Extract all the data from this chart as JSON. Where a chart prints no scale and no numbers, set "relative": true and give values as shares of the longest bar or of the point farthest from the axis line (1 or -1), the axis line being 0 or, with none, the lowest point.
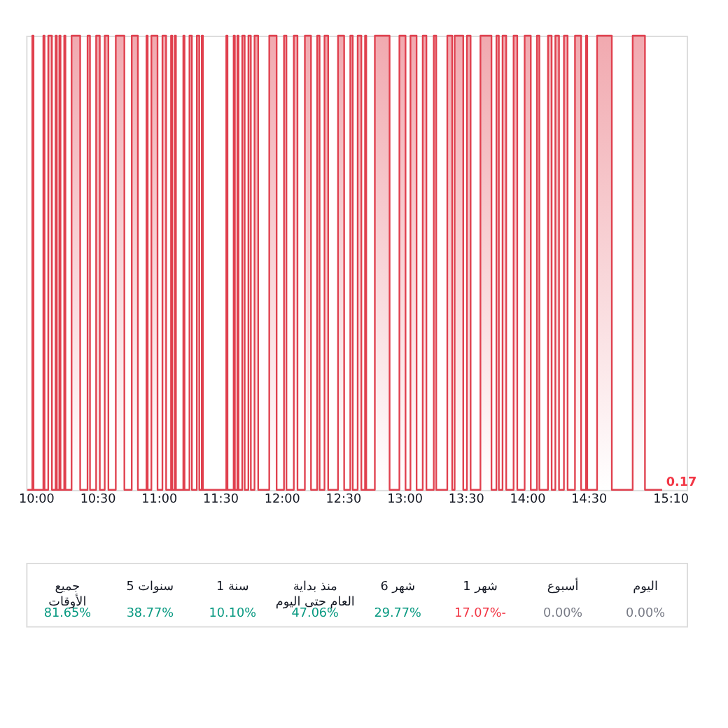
{
  "chart_data": [
    {
      "type": "step",
      "relative": true,
      "xlim": [
        9.92,
        15.3
      ],
      "xticks": [
        {
          "value": 10,
          "label": "10:00"
        },
        {
          "value": 10.5,
          "label": "10:30"
        },
        {
          "value": 11,
          "label": "11:00"
        },
        {
          "value": 11.5,
          "label": "11:30"
        },
        {
          "value": 12,
          "label": "12:00"
        },
        {
          "value": 12.5,
          "label": "12:30"
        },
        {
          "value": 13,
          "label": "13:00"
        },
        {
          "value": 13.5,
          "label": "13:30"
        },
        {
          "value": 14,
          "label": "14:00"
        },
        {
          "value": 14.5,
          "label": "14:30"
        },
        {
          "value": 15.1667,
          "label": "15:10"
        }
      ],
      "tick_labels": "x",
      "annotations": [
        {
          "text": "0.17",
          "x": 15.1,
          "y": 0
        }
      ],
      "series": [
        {
          "color": "#e0404e",
          "x": [
            9.93,
            9.97,
            9.98,
            10.06,
            10.07,
            10.1,
            10.13,
            10.16,
            10.17,
            10.19,
            10.2,
            10.23,
            10.24,
            10.29,
            10.36,
            10.42,
            10.44,
            10.49,
            10.52,
            10.56,
            10.59,
            10.65,
            10.72,
            10.78,
            10.83,
            10.9,
            10.91,
            10.94,
            10.99,
            11.03,
            11.06,
            11.1,
            11.11,
            11.13,
            11.14,
            11.2,
            11.21,
            11.25,
            11.27,
            11.31,
            11.33,
            11.35,
            11.36,
            11.55,
            11.56,
            11.61,
            11.62,
            11.64,
            11.65,
            11.68,
            11.7,
            11.73,
            11.75,
            11.78,
            11.81,
            11.9,
            11.96,
            12.02,
            12.04,
            12.1,
            12.13,
            12.19,
            12.24,
            12.29,
            12.31,
            12.35,
            12.38,
            12.46,
            12.51,
            12.56,
            12.58,
            12.62,
            12.65,
            12.68,
            12.69,
            12.76,
            12.88,
            12.96,
            13.01,
            13.05,
            13.1,
            13.15,
            13.18,
            13.24,
            13.26,
            13.35,
            13.39,
            13.41,
            13.48,
            13.51,
            13.54,
            13.62,
            13.71,
            13.75,
            13.77,
            13.8,
            13.83,
            13.89,
            13.92,
            13.98,
            14.03,
            14.08,
            14.1,
            14.17,
            14.2,
            14.23,
            14.26,
            14.3,
            14.33,
            14.39,
            14.44,
            14.48,
            14.49,
            14.57,
            14.69,
            14.86,
            14.96,
            15.1
          ],
          "values": [
            0,
            1,
            0,
            1,
            0,
            1,
            0,
            1,
            0,
            1,
            0,
            1,
            0,
            1,
            0,
            1,
            0,
            1,
            0,
            1,
            0,
            1,
            0,
            1,
            0,
            1,
            0,
            1,
            0,
            1,
            0,
            1,
            0,
            1,
            0,
            1,
            0,
            1,
            0,
            1,
            0,
            1,
            0,
            1,
            0,
            1,
            0,
            1,
            0,
            1,
            0,
            1,
            0,
            1,
            0,
            1,
            0,
            1,
            0,
            1,
            0,
            1,
            0,
            1,
            0,
            1,
            0,
            1,
            0,
            1,
            0,
            1,
            0,
            1,
            0,
            1,
            0,
            1,
            0,
            1,
            0,
            1,
            0,
            1,
            0,
            1,
            0,
            1,
            0,
            1,
            0,
            1,
            0,
            1,
            0,
            1,
            0,
            1,
            0,
            1,
            0,
            1,
            0,
            1,
            0,
            1,
            0,
            1,
            0,
            1,
            0,
            1,
            0,
            1,
            0,
            1,
            0,
            0
          ]
        }
      ]
    },
    {
      "type": "other",
      "categories": [
        "جميع الأوقات",
        "5 سنوات",
        "1 سنة",
        "منذ بداية العام حتى اليوم",
        "6 شهر",
        "1 شهر",
        "أسبوع",
        "اليوم"
      ],
      "value_labels": [
        "81.65%",
        "38.77%",
        "10.10%",
        "47.06%",
        "29.77%",
        "17.07%-",
        "0.00%",
        "0.00%"
      ],
      "colors": [
        "#089981",
        "#089981",
        "#089981",
        "#089981",
        "#089981",
        "#f23645",
        "#787b86",
        "#787b86"
      ]
    }
  ]
}
